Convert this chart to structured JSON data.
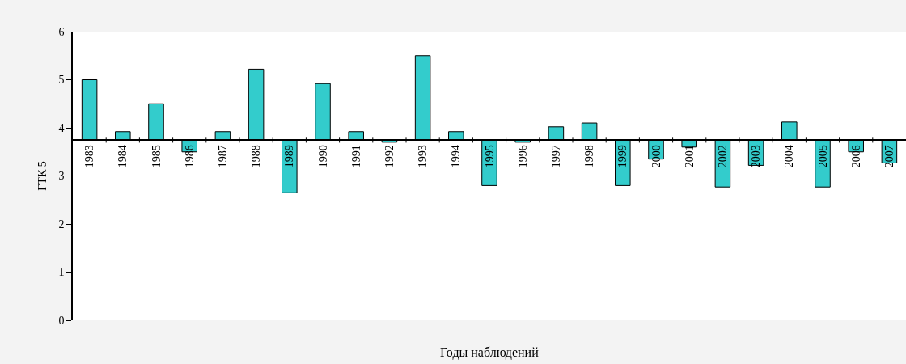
{
  "chart_data": {
    "type": "bar",
    "xlabel": "Годы наблюдений",
    "ylabel": "ГТК 5",
    "categories": [
      "1983",
      "1984",
      "1985",
      "1986",
      "1987",
      "1988",
      "1989",
      "1990",
      "1991",
      "1992",
      "1993",
      "1994",
      "1995",
      "1996",
      "1997",
      "1998",
      "1999",
      "2000",
      "2001",
      "2002",
      "2003",
      "2004",
      "2005",
      "2006",
      "2007"
    ],
    "base": [
      3.75,
      3.75,
      3.75,
      3.75,
      3.75,
      3.75,
      3.75,
      3.75,
      3.75,
      3.75,
      3.75,
      3.75,
      3.75,
      3.75,
      3.75,
      3.75,
      3.75,
      3.75,
      3.75,
      3.75,
      3.75,
      3.75,
      3.75,
      3.75,
      3.75
    ],
    "values": [
      1.25,
      0.17,
      0.75,
      -0.25,
      0.17,
      1.47,
      -1.1,
      1.17,
      0.17,
      -0.05,
      1.75,
      0.17,
      -0.95,
      -0.05,
      0.27,
      0.35,
      -0.95,
      -0.4,
      -0.15,
      -0.98,
      -0.53,
      0.37,
      -0.98,
      -0.25,
      -0.48
    ],
    "color": "#33cccc",
    "ylim": [
      0,
      6
    ],
    "yticks": [
      0,
      1,
      2,
      3,
      4,
      5,
      6
    ],
    "grid": false,
    "legend": false
  }
}
